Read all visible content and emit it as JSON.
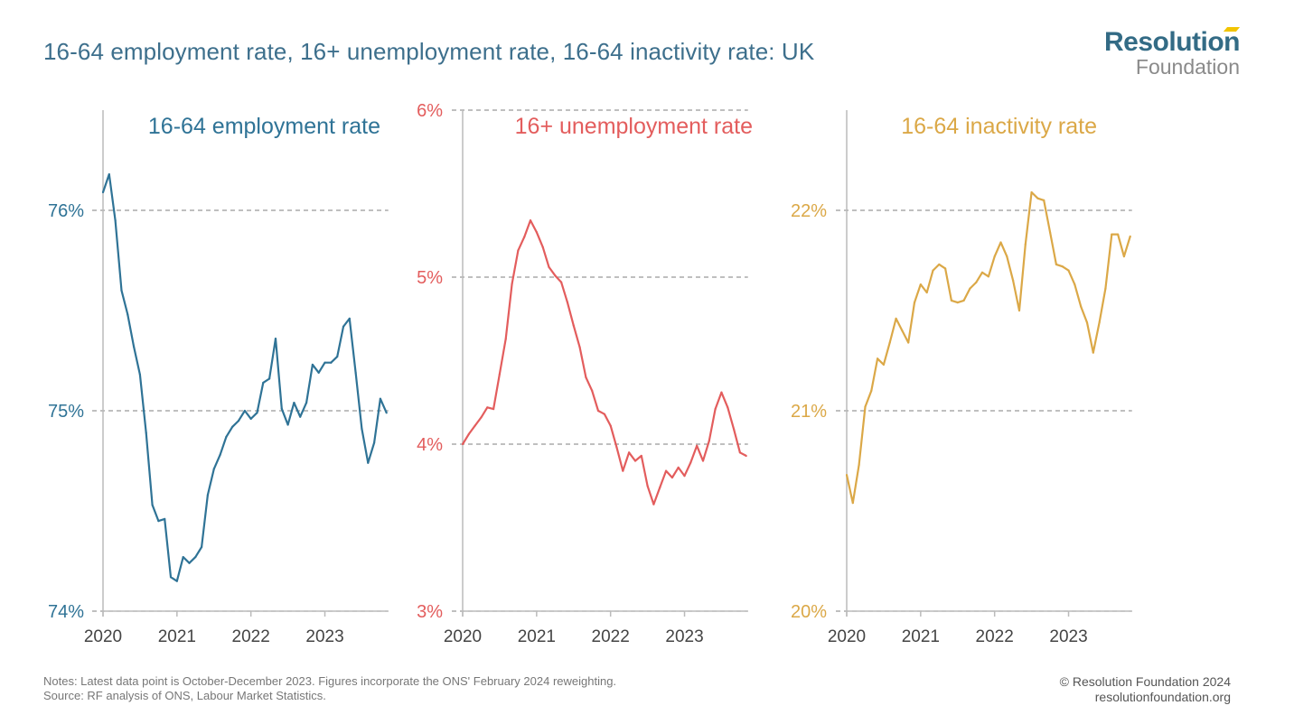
{
  "title": "16-64 employment rate, 16+ unemployment rate, 16-64 inactivity rate: UK",
  "logo": {
    "line1": "Resolution",
    "line2": "Foundation"
  },
  "notes": "Notes: Latest data point is October-December 2023. Figures incorporate the ONS' February 2024 reweighting.",
  "source": "Source: RF analysis of ONS, Labour Market Statistics.",
  "copyright": "© Resolution Foundation 2024",
  "website": "resolutionfoundation.org",
  "colors": {
    "employment": "#2f7396",
    "unemployment": "#e35d5d",
    "inactivity": "#dba847",
    "grid": "#999999",
    "axis": "#bbbbbb"
  },
  "chart_data": [
    {
      "type": "line",
      "title": "16-64 employment rate",
      "xlabel": "",
      "ylabel": "",
      "x_start": "2020-01",
      "x_frequency": "monthly",
      "x_ticks": [
        "2020",
        "2021",
        "2022",
        "2023"
      ],
      "ylim": [
        74,
        76.5
      ],
      "y_ticks": [
        74,
        75,
        76
      ],
      "y_tick_labels": [
        "74%",
        "75%",
        "76%"
      ],
      "grid": "horizontal dashed",
      "values": [
        76.09,
        76.18,
        75.95,
        75.6,
        75.48,
        75.32,
        75.18,
        74.89,
        74.53,
        74.45,
        74.46,
        74.17,
        74.15,
        74.27,
        74.24,
        74.27,
        74.32,
        74.58,
        74.71,
        74.78,
        74.87,
        74.92,
        74.95,
        75.0,
        74.96,
        74.99,
        75.14,
        75.16,
        75.36,
        75.01,
        74.93,
        75.04,
        74.97,
        75.04,
        75.23,
        75.19,
        75.24,
        75.24,
        75.27,
        75.42,
        75.46,
        75.19,
        74.91,
        74.74,
        74.84,
        75.06,
        74.99
      ]
    },
    {
      "type": "line",
      "title": "16+ unemployment rate",
      "xlabel": "",
      "ylabel": "",
      "x_start": "2020-01",
      "x_frequency": "monthly",
      "x_ticks": [
        "2020",
        "2021",
        "2022",
        "2023"
      ],
      "ylim": [
        3,
        6
      ],
      "y_ticks": [
        3,
        4,
        5,
        6
      ],
      "y_tick_labels": [
        "3%",
        "4%",
        "5%",
        "6%"
      ],
      "grid": "horizontal dashed",
      "values": [
        4.0,
        4.06,
        4.11,
        4.16,
        4.22,
        4.21,
        4.42,
        4.63,
        4.96,
        5.16,
        5.24,
        5.34,
        5.27,
        5.18,
        5.06,
        5.01,
        4.97,
        4.85,
        4.71,
        4.58,
        4.4,
        4.32,
        4.2,
        4.18,
        4.11,
        3.98,
        3.84,
        3.95,
        3.9,
        3.93,
        3.75,
        3.64,
        3.74,
        3.84,
        3.8,
        3.86,
        3.81,
        3.89,
        3.99,
        3.9,
        4.02,
        4.21,
        4.31,
        4.22,
        4.09,
        3.95,
        3.93
      ]
    },
    {
      "type": "line",
      "title": "16-64 inactivity rate",
      "xlabel": "",
      "ylabel": "",
      "x_start": "2020-01",
      "x_frequency": "monthly",
      "x_ticks": [
        "2020",
        "2021",
        "2022",
        "2023"
      ],
      "ylim": [
        20,
        22.5
      ],
      "y_ticks": [
        20,
        21,
        22
      ],
      "y_tick_labels": [
        "20%",
        "21%",
        "22%"
      ],
      "grid": "horizontal dashed",
      "values": [
        20.68,
        20.54,
        20.73,
        21.02,
        21.1,
        21.26,
        21.23,
        21.34,
        21.46,
        21.4,
        21.34,
        21.54,
        21.63,
        21.59,
        21.7,
        21.73,
        21.71,
        21.55,
        21.54,
        21.55,
        21.61,
        21.64,
        21.69,
        21.67,
        21.77,
        21.84,
        21.77,
        21.65,
        21.5,
        21.83,
        22.09,
        22.06,
        22.05,
        21.89,
        21.73,
        21.72,
        21.7,
        21.63,
        21.52,
        21.44,
        21.29,
        21.44,
        21.61,
        21.88,
        21.88,
        21.77,
        21.87
      ]
    }
  ]
}
